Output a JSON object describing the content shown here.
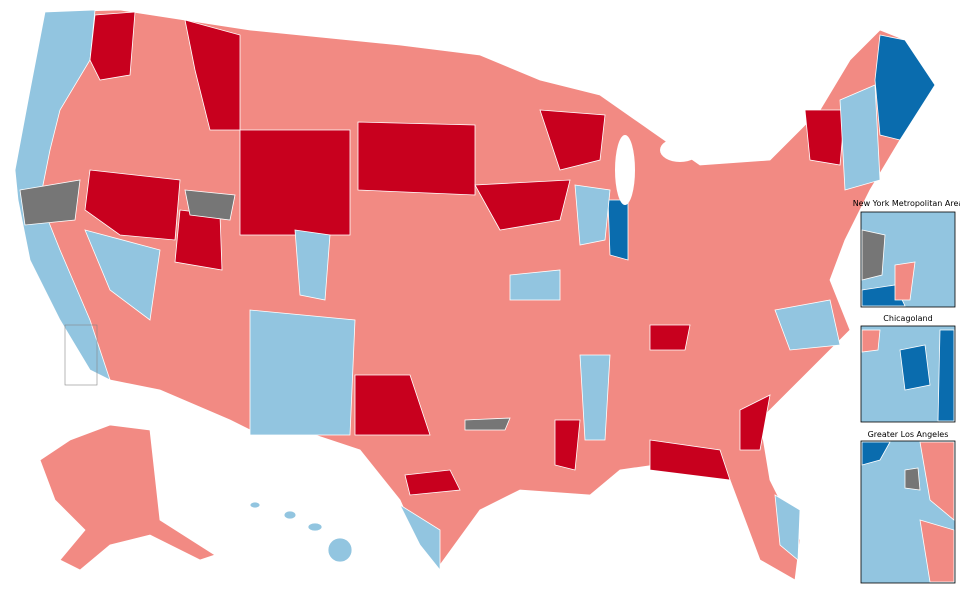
{
  "insets": [
    {
      "title": "New York Metropolitan Area"
    },
    {
      "title": "Chicagoland"
    },
    {
      "title": "Greater Los Angeles"
    }
  ]
}
